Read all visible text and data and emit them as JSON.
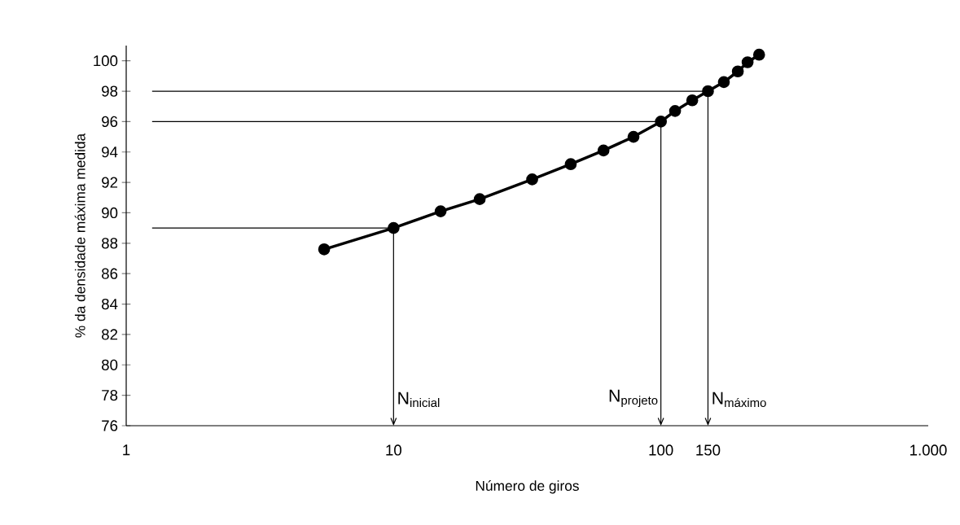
{
  "chart_data": {
    "type": "line",
    "xlabel": "Número de giros",
    "ylabel": "% da densidade máxima medida",
    "log": "x",
    "grid": false,
    "marker": "circle",
    "line_style": "solid",
    "color": "#000000",
    "x": [
      5.5,
      10,
      15,
      21,
      33,
      46,
      61,
      79,
      100,
      113,
      131,
      150,
      172,
      194,
      211,
      233
    ],
    "values": [
      87.6,
      89,
      90.1,
      90.9,
      92.2,
      93.2,
      94.1,
      95.0,
      96.0,
      96.7,
      97.4,
      98.0,
      98.6,
      99.3,
      99.9,
      100.4
    ],
    "xlim": [
      1,
      1000
    ],
    "xticks": [
      1,
      10,
      100,
      150,
      {
        "value": 1000,
        "label": "1.000"
      }
    ],
    "ylim": [
      76,
      101
    ],
    "yticks": [
      76,
      78,
      80,
      82,
      84,
      86,
      88,
      90,
      92,
      94,
      96,
      98,
      100
    ],
    "ref_lines": [
      {
        "axis": "y",
        "value": 98
      },
      {
        "axis": "y",
        "value": 96
      },
      {
        "axis": "y",
        "value": 89
      },
      {
        "axis": "x",
        "value": 10,
        "label": "N$_{inicial}$"
      },
      {
        "axis": "x",
        "value": 100,
        "label": "N$_{projeto}$"
      },
      {
        "axis": "x",
        "value": 150,
        "label": "N$_{máximo}$"
      }
    ]
  }
}
